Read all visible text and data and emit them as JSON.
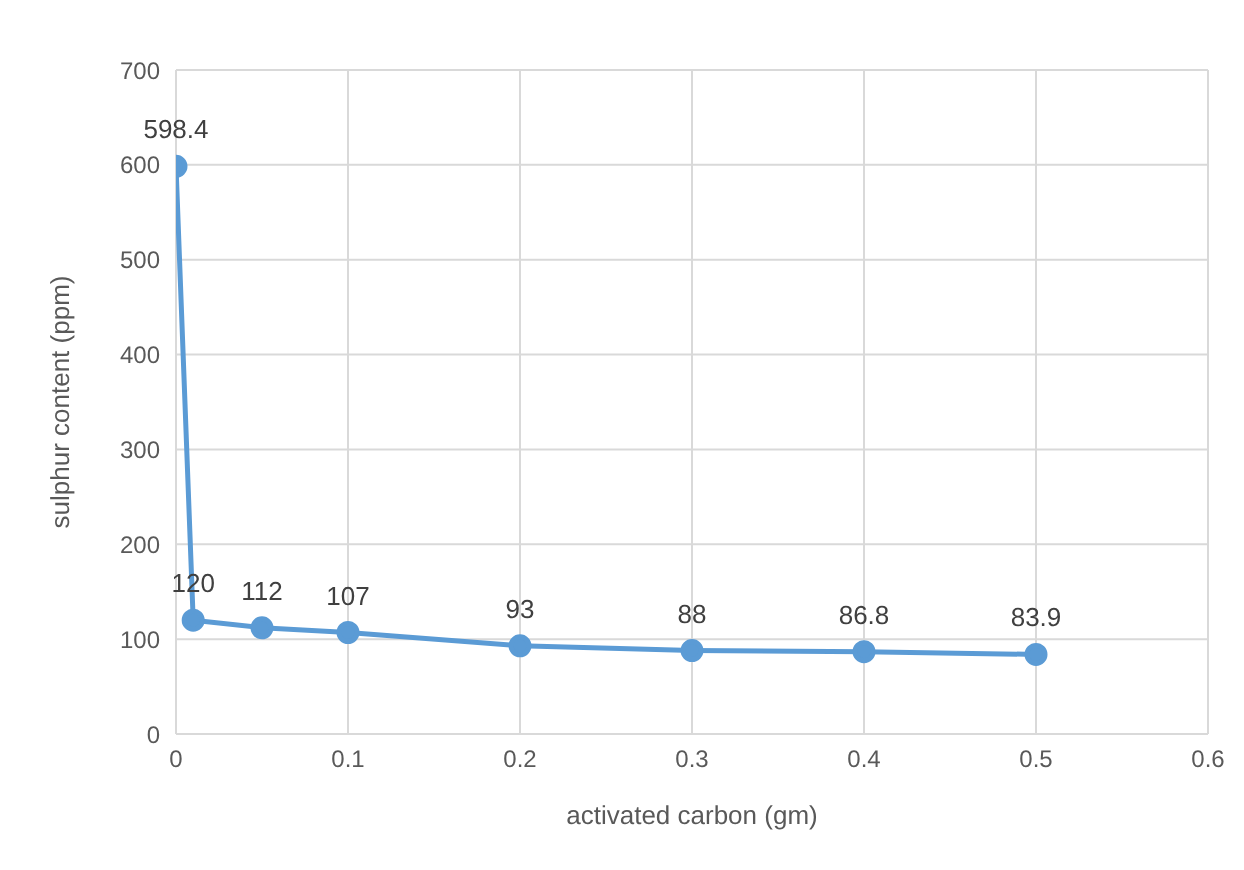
{
  "chart_data": {
    "type": "line",
    "xlabel": "activated carbon (gm)",
    "ylabel": "sulphur content (ppm)",
    "x": [
      0,
      0.01,
      0.05,
      0.1,
      0.2,
      0.3,
      0.4,
      0.5
    ],
    "series": [
      {
        "color": "#5b9bd5",
        "values": [
          598.4,
          120,
          112,
          107,
          93,
          88,
          86.8,
          83.9
        ]
      }
    ],
    "xlim": [
      0,
      0.6
    ],
    "xticks": [
      0,
      0.1,
      0.2,
      0.3,
      0.4,
      0.5,
      0.6
    ],
    "ylim": [
      0,
      700
    ],
    "yticks": [
      0,
      100,
      200,
      300,
      400,
      500,
      600,
      700
    ],
    "grid": true,
    "marker": "circle",
    "line_style": "solid",
    "data_labels": true
  }
}
